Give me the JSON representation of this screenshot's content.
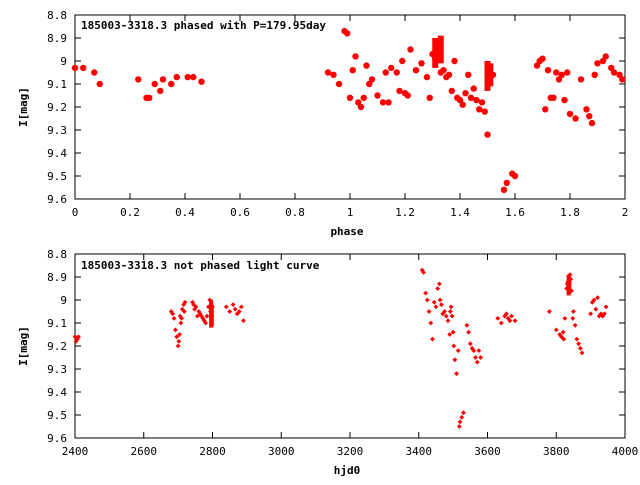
{
  "colors": {
    "points": "#ff0000",
    "axis": "#000000",
    "background": "#ffffff"
  },
  "chart_data": [
    {
      "type": "scatter",
      "title": "185003-3318.3 phased with P=179.95day",
      "xlabel": "phase",
      "ylabel": "I[mag]",
      "xlim": [
        0,
        2
      ],
      "ylim": [
        8.8,
        9.6
      ],
      "y_inverted": true,
      "grid": false,
      "marker": "filled-circle",
      "xticks": [
        "0",
        "0.2",
        "0.4",
        "0.6",
        "0.8",
        "1",
        "1.2",
        "1.4",
        "1.6",
        "1.8",
        "2"
      ],
      "yticks": [
        "8.8",
        "8.9",
        "9",
        "9.1",
        "9.2",
        "9.3",
        "9.4",
        "9.5",
        "9.6"
      ],
      "x": [
        0.0,
        0.03,
        0.07,
        0.09,
        0.23,
        0.26,
        0.27,
        0.29,
        0.31,
        0.32,
        0.35,
        0.37,
        0.41,
        0.43,
        0.46,
        0.92,
        0.94,
        0.96,
        0.98,
        0.99,
        1.0,
        1.01,
        1.02,
        1.03,
        1.04,
        1.05,
        1.06,
        1.07,
        1.08,
        1.1,
        1.12,
        1.13,
        1.14,
        1.15,
        1.17,
        1.18,
        1.19,
        1.2,
        1.21,
        1.22,
        1.24,
        1.26,
        1.28,
        1.29,
        1.3,
        1.31,
        1.32,
        1.33,
        1.34,
        1.35,
        1.36,
        1.37,
        1.38,
        1.39,
        1.4,
        1.41,
        1.42,
        1.43,
        1.44,
        1.45,
        1.46,
        1.47,
        1.48,
        1.49,
        1.5,
        1.51,
        1.52,
        1.56,
        1.57,
        1.59,
        1.6,
        1.68,
        1.69,
        1.7,
        1.71,
        1.72,
        1.73,
        1.74,
        1.75,
        1.76,
        1.77,
        1.78,
        1.79,
        1.8,
        1.82,
        1.84,
        1.86,
        1.87,
        1.88,
        1.89,
        1.9,
        1.92,
        1.93,
        1.95,
        1.96,
        1.98,
        1.99
      ],
      "y": [
        9.03,
        9.03,
        9.05,
        9.1,
        9.08,
        9.16,
        9.16,
        9.1,
        9.13,
        9.08,
        9.1,
        9.07,
        9.07,
        9.07,
        9.09,
        9.05,
        9.06,
        9.1,
        8.87,
        8.88,
        9.16,
        9.04,
        8.98,
        9.18,
        9.2,
        9.16,
        9.02,
        9.1,
        9.08,
        9.15,
        9.18,
        9.05,
        9.18,
        9.03,
        9.05,
        9.13,
        9.0,
        9.14,
        9.15,
        8.95,
        9.04,
        9.01,
        9.07,
        9.16,
        8.97,
        8.99,
        8.93,
        9.05,
        9.04,
        9.07,
        9.06,
        9.13,
        9.0,
        9.16,
        9.17,
        9.19,
        9.14,
        9.06,
        9.16,
        9.12,
        9.17,
        9.21,
        9.18,
        9.22,
        9.32,
        9.07,
        9.06,
        9.56,
        9.53,
        9.49,
        9.5,
        9.02,
        9.0,
        8.99,
        9.21,
        9.04,
        9.16,
        9.16,
        9.05,
        9.08,
        9.06,
        9.17,
        9.05,
        9.23,
        9.25,
        9.08,
        9.21,
        9.24,
        9.27,
        9.06,
        9.01,
        9.0,
        8.98,
        9.03,
        9.05,
        9.06,
        9.08
      ],
      "clusters": [
        {
          "x": 1.31,
          "y_from": 8.9,
          "y_to": 9.03
        },
        {
          "x": 1.33,
          "y_from": 8.89,
          "y_to": 9.01
        },
        {
          "x": 1.5,
          "y_from": 9.0,
          "y_to": 9.13
        },
        {
          "x": 1.51,
          "y_from": 9.01,
          "y_to": 9.11
        }
      ]
    },
    {
      "type": "scatter",
      "title": "185003-3318.3 not phased light curve",
      "xlabel": "hjd0",
      "ylabel": "I[mag]",
      "xlim": [
        2400,
        4000
      ],
      "ylim": [
        8.8,
        9.6
      ],
      "y_inverted": true,
      "grid": false,
      "marker": "small-diamond",
      "xticks": [
        "2400",
        "2600",
        "2800",
        "3000",
        "3200",
        "3400",
        "3600",
        "3800",
        "4000"
      ],
      "yticks": [
        "8.8",
        "8.9",
        "9",
        "9.1",
        "9.2",
        "9.3",
        "9.4",
        "9.5",
        "9.6"
      ],
      "x": [
        2400,
        2403,
        2407,
        2410,
        2680,
        2684,
        2688,
        2692,
        2696,
        2700,
        2702,
        2704,
        2706,
        2708,
        2710,
        2712,
        2716,
        2718,
        2720,
        2742,
        2745,
        2748,
        2752,
        2756,
        2760,
        2764,
        2768,
        2772,
        2776,
        2780,
        2784,
        2788,
        2792,
        2794,
        2796,
        2798,
        2800,
        2840,
        2850,
        2860,
        2866,
        2872,
        2878,
        2884,
        2890,
        3410,
        3414,
        3420,
        3425,
        3430,
        3435,
        3440,
        3445,
        3450,
        3455,
        3460,
        3462,
        3466,
        3470,
        3475,
        3480,
        3485,
        3490,
        3492,
        3494,
        3497,
        3500,
        3502,
        3505,
        3510,
        3515,
        3518,
        3520,
        3525,
        3530,
        3540,
        3545,
        3550,
        3555,
        3560,
        3565,
        3570,
        3575,
        3580,
        3630,
        3640,
        3650,
        3655,
        3660,
        3665,
        3670,
        3680,
        3780,
        3800,
        3810,
        3815,
        3820,
        3822,
        3825,
        3830,
        3832,
        3834,
        3836,
        3838,
        3840,
        3842,
        3844,
        3848,
        3850,
        3855,
        3860,
        3865,
        3870,
        3875,
        3900,
        3905,
        3910,
        3915,
        3920,
        3925,
        3930,
        3935,
        3940,
        3945
      ],
      "y": [
        9.16,
        9.18,
        9.17,
        9.16,
        9.05,
        9.06,
        9.08,
        9.13,
        9.16,
        9.2,
        9.18,
        9.15,
        9.07,
        9.1,
        9.08,
        9.04,
        9.02,
        9.05,
        9.01,
        9.01,
        9.02,
        9.04,
        9.03,
        9.07,
        9.05,
        9.06,
        9.07,
        9.08,
        9.09,
        9.1,
        9.07,
        9.03,
        9.0,
        9.05,
        9.08,
        9.11,
        9.03,
        9.03,
        9.05,
        9.02,
        9.04,
        9.06,
        9.05,
        9.03,
        9.09,
        8.87,
        8.88,
        8.97,
        9.0,
        9.05,
        9.1,
        9.17,
        9.01,
        9.03,
        8.95,
        8.93,
        9.0,
        9.02,
        9.06,
        9.05,
        9.07,
        9.09,
        9.15,
        9.05,
        9.03,
        9.07,
        9.14,
        9.2,
        9.26,
        9.32,
        9.22,
        9.55,
        9.53,
        9.51,
        9.49,
        9.11,
        9.14,
        9.19,
        9.21,
        9.22,
        9.25,
        9.27,
        9.22,
        9.25,
        9.08,
        9.1,
        9.07,
        9.06,
        9.08,
        9.09,
        9.07,
        9.09,
        9.05,
        9.13,
        9.15,
        9.16,
        9.14,
        9.17,
        9.08,
        8.95,
        8.93,
        8.92,
        8.94,
        8.97,
        8.89,
        8.91,
        8.96,
        9.08,
        9.05,
        9.11,
        9.17,
        9.19,
        9.21,
        9.23,
        9.06,
        9.01,
        9.0,
        9.04,
        8.99,
        9.07,
        9.06,
        9.07,
        9.06,
        9.03
      ],
      "clusters": [
        {
          "x": 2796,
          "y_from": 9.0,
          "y_to": 9.12
        },
        {
          "x": 2798,
          "y_from": 9.02,
          "y_to": 9.11
        },
        {
          "x": 3836,
          "y_from": 8.89,
          "y_to": 8.98
        },
        {
          "x": 3838,
          "y_from": 8.9,
          "y_to": 8.97
        }
      ]
    }
  ]
}
